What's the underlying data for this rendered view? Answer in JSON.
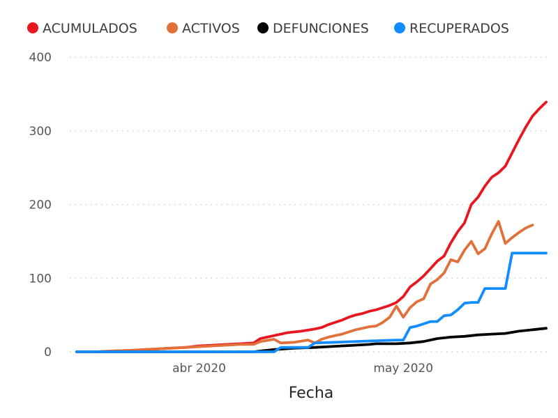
{
  "chart_data": {
    "type": "line",
    "title": "",
    "xlabel": "Fecha",
    "ylabel": "",
    "ylim": [
      0,
      400
    ],
    "y_ticks": [
      0,
      100,
      200,
      300,
      400
    ],
    "y_tick_labels": [
      "0",
      "100",
      "200",
      "300",
      "400"
    ],
    "x_tick_labels": [
      {
        "date": "2020-04-01",
        "label": "abr 2020"
      },
      {
        "date": "2020-05-01",
        "label": "may 2020"
      }
    ],
    "grid": true,
    "legend_position": "top-left",
    "series": [
      {
        "name": "ACUMULADOS",
        "color": "#e8161e",
        "points": [
          [
            "2020-03-14",
            0
          ],
          [
            "2020-03-17",
            0
          ],
          [
            "2020-03-19",
            1
          ],
          [
            "2020-03-22",
            2
          ],
          [
            "2020-03-24",
            3
          ],
          [
            "2020-03-26",
            4
          ],
          [
            "2020-03-28",
            5
          ],
          [
            "2020-03-30",
            6
          ],
          [
            "2020-04-01",
            8
          ],
          [
            "2020-04-03",
            9
          ],
          [
            "2020-04-05",
            10
          ],
          [
            "2020-04-07",
            11
          ],
          [
            "2020-04-09",
            12
          ],
          [
            "2020-04-10",
            18
          ],
          [
            "2020-04-12",
            22
          ],
          [
            "2020-04-14",
            26
          ],
          [
            "2020-04-16",
            28
          ],
          [
            "2020-04-18",
            31
          ],
          [
            "2020-04-19",
            33
          ],
          [
            "2020-04-20",
            37
          ],
          [
            "2020-04-21",
            40
          ],
          [
            "2020-04-22",
            43
          ],
          [
            "2020-04-23",
            47
          ],
          [
            "2020-04-24",
            50
          ],
          [
            "2020-04-25",
            52
          ],
          [
            "2020-04-26",
            55
          ],
          [
            "2020-04-27",
            57
          ],
          [
            "2020-04-28",
            60
          ],
          [
            "2020-04-29",
            63
          ],
          [
            "2020-04-30",
            67
          ],
          [
            "2020-05-01",
            75
          ],
          [
            "2020-05-02",
            88
          ],
          [
            "2020-05-03",
            95
          ],
          [
            "2020-05-04",
            103
          ],
          [
            "2020-05-05",
            113
          ],
          [
            "2020-05-06",
            123
          ],
          [
            "2020-05-07",
            130
          ],
          [
            "2020-05-08",
            148
          ],
          [
            "2020-05-09",
            163
          ],
          [
            "2020-05-10",
            175
          ],
          [
            "2020-05-11",
            200
          ],
          [
            "2020-05-12",
            210
          ],
          [
            "2020-05-13",
            225
          ],
          [
            "2020-05-14",
            237
          ],
          [
            "2020-05-15",
            243
          ],
          [
            "2020-05-16",
            252
          ],
          [
            "2020-05-17",
            270
          ],
          [
            "2020-05-18",
            288
          ],
          [
            "2020-05-19",
            305
          ],
          [
            "2020-05-20",
            320
          ],
          [
            "2020-05-21",
            330
          ],
          [
            "2020-05-22",
            339
          ]
        ]
      },
      {
        "name": "ACTIVOS",
        "color": "#e2703a",
        "points": [
          [
            "2020-03-14",
            0
          ],
          [
            "2020-03-17",
            0
          ],
          [
            "2020-03-19",
            1
          ],
          [
            "2020-03-22",
            2
          ],
          [
            "2020-03-24",
            3
          ],
          [
            "2020-03-26",
            4
          ],
          [
            "2020-03-28",
            5
          ],
          [
            "2020-03-30",
            6
          ],
          [
            "2020-04-01",
            7
          ],
          [
            "2020-04-03",
            8
          ],
          [
            "2020-04-05",
            9
          ],
          [
            "2020-04-07",
            10
          ],
          [
            "2020-04-09",
            10
          ],
          [
            "2020-04-10",
            14
          ],
          [
            "2020-04-12",
            17
          ],
          [
            "2020-04-13",
            12
          ],
          [
            "2020-04-15",
            13
          ],
          [
            "2020-04-17",
            16
          ],
          [
            "2020-04-18",
            12
          ],
          [
            "2020-04-19",
            17
          ],
          [
            "2020-04-20",
            20
          ],
          [
            "2020-04-21",
            22
          ],
          [
            "2020-04-22",
            24
          ],
          [
            "2020-04-23",
            27
          ],
          [
            "2020-04-24",
            30
          ],
          [
            "2020-04-25",
            32
          ],
          [
            "2020-04-26",
            34
          ],
          [
            "2020-04-27",
            35
          ],
          [
            "2020-04-28",
            40
          ],
          [
            "2020-04-29",
            47
          ],
          [
            "2020-04-30",
            62
          ],
          [
            "2020-05-01",
            47
          ],
          [
            "2020-05-02",
            60
          ],
          [
            "2020-05-03",
            68
          ],
          [
            "2020-05-04",
            72
          ],
          [
            "2020-05-05",
            92
          ],
          [
            "2020-05-06",
            98
          ],
          [
            "2020-05-07",
            107
          ],
          [
            "2020-05-08",
            125
          ],
          [
            "2020-05-09",
            122
          ],
          [
            "2020-05-10",
            138
          ],
          [
            "2020-05-11",
            150
          ],
          [
            "2020-05-12",
            133
          ],
          [
            "2020-05-13",
            140
          ],
          [
            "2020-05-14",
            160
          ],
          [
            "2020-05-15",
            177
          ],
          [
            "2020-05-16",
            147
          ],
          [
            "2020-05-17",
            155
          ],
          [
            "2020-05-18",
            162
          ],
          [
            "2020-05-19",
            168
          ],
          [
            "2020-05-20",
            172
          ]
        ]
      },
      {
        "name": "DEFUNCIONES",
        "color": "#000000",
        "points": [
          [
            "2020-03-14",
            0
          ],
          [
            "2020-04-09",
            0
          ],
          [
            "2020-04-10",
            1
          ],
          [
            "2020-04-12",
            3
          ],
          [
            "2020-04-15",
            5
          ],
          [
            "2020-04-18",
            6
          ],
          [
            "2020-04-20",
            7
          ],
          [
            "2020-04-22",
            8
          ],
          [
            "2020-04-24",
            9
          ],
          [
            "2020-04-26",
            10
          ],
          [
            "2020-04-27",
            11
          ],
          [
            "2020-04-30",
            11
          ],
          [
            "2020-05-02",
            12
          ],
          [
            "2020-05-04",
            14
          ],
          [
            "2020-05-06",
            18
          ],
          [
            "2020-05-08",
            20
          ],
          [
            "2020-05-10",
            21
          ],
          [
            "2020-05-12",
            23
          ],
          [
            "2020-05-14",
            24
          ],
          [
            "2020-05-16",
            25
          ],
          [
            "2020-05-18",
            28
          ],
          [
            "2020-05-20",
            30
          ],
          [
            "2020-05-22",
            32
          ]
        ]
      },
      {
        "name": "RECUPERADOS",
        "color": "#118dff",
        "points": [
          [
            "2020-03-14",
            0
          ],
          [
            "2020-04-12",
            0
          ],
          [
            "2020-04-13",
            6
          ],
          [
            "2020-04-17",
            6
          ],
          [
            "2020-04-18",
            12
          ],
          [
            "2020-04-21",
            13
          ],
          [
            "2020-04-24",
            14
          ],
          [
            "2020-04-27",
            15
          ],
          [
            "2020-04-30",
            16
          ],
          [
            "2020-05-01",
            16
          ],
          [
            "2020-05-02",
            33
          ],
          [
            "2020-05-03",
            35
          ],
          [
            "2020-05-04",
            38
          ],
          [
            "2020-05-05",
            41
          ],
          [
            "2020-05-06",
            41
          ],
          [
            "2020-05-07",
            49
          ],
          [
            "2020-05-08",
            50
          ],
          [
            "2020-05-09",
            57
          ],
          [
            "2020-05-10",
            66
          ],
          [
            "2020-05-11",
            67
          ],
          [
            "2020-05-12",
            67
          ],
          [
            "2020-05-13",
            86
          ],
          [
            "2020-05-16",
            86
          ],
          [
            "2020-05-17",
            134
          ],
          [
            "2020-05-22",
            134
          ]
        ]
      }
    ]
  }
}
